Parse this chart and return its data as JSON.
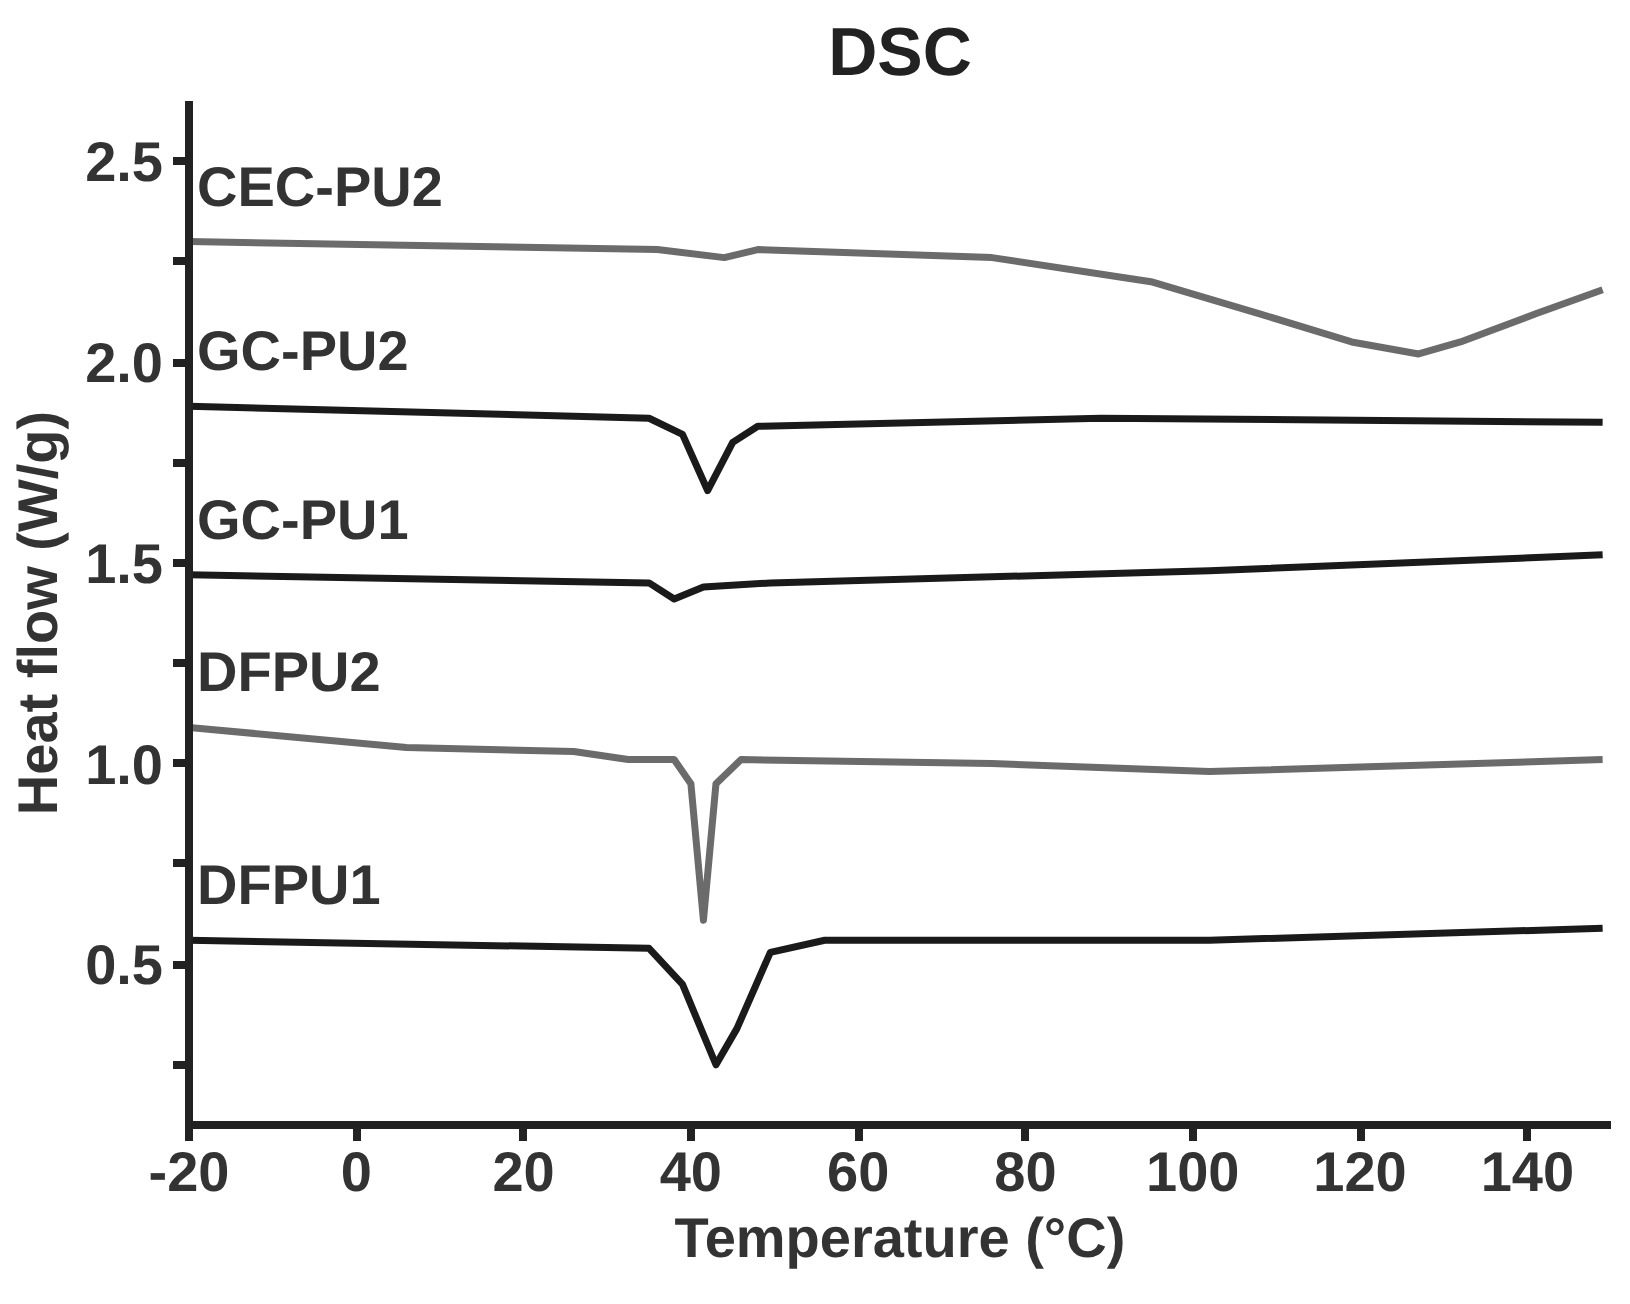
{
  "chart_data": {
    "type": "line",
    "title": "DSC",
    "xlabel": "Temperature (°C)",
    "ylabel": "Heat flow (W/g)",
    "xlim": [
      -20,
      150
    ],
    "xticks": [
      -20,
      0,
      20,
      40,
      60,
      80,
      100,
      120,
      140
    ],
    "ylim": [
      0.1,
      2.65
    ],
    "yticks": [
      {
        "value": 0.25,
        "label": null
      },
      0.5,
      {
        "value": 0.75,
        "label": null
      },
      {
        "value": 1.0,
        "label": "1.0"
      },
      {
        "value": 1.25,
        "label": null
      },
      1.5,
      {
        "value": 1.75,
        "label": null
      },
      {
        "value": 2.0,
        "label": "2.0"
      },
      {
        "value": 2.25,
        "label": null
      },
      2.5
    ],
    "grid": false,
    "legend": false,
    "marker": "none",
    "line_style": "solid",
    "series": [
      {
        "name": "CEC-PU2",
        "color": "#6b6b6b",
        "x": [
          -20,
          36,
          44,
          48,
          76,
          95,
          108,
          119,
          127,
          132,
          141,
          149
        ],
        "values": [
          2.3,
          2.28,
          2.26,
          2.28,
          2.26,
          2.2,
          2.12,
          2.05,
          2.02,
          2.05,
          2.12,
          2.18
        ]
      },
      {
        "name": "GC-PU2",
        "color": "#1a1a1a",
        "x": [
          -20,
          35,
          39,
          42,
          45,
          48,
          89,
          149
        ],
        "values": [
          1.89,
          1.86,
          1.82,
          1.68,
          1.8,
          1.84,
          1.86,
          1.85
        ]
      },
      {
        "name": "GC-PU1",
        "color": "#1a1a1a",
        "x": [
          -20,
          35,
          38,
          41.5,
          49.5,
          102,
          149
        ],
        "values": [
          1.47,
          1.45,
          1.41,
          1.44,
          1.45,
          1.48,
          1.52
        ]
      },
      {
        "name": "DFPU2",
        "color": "#6b6b6b",
        "x": [
          -20,
          6,
          26,
          32.5,
          38,
          40,
          41.5,
          43,
          46,
          76,
          102,
          149
        ],
        "values": [
          1.09,
          1.04,
          1.03,
          1.01,
          1.01,
          0.95,
          0.61,
          0.95,
          1.01,
          1.0,
          0.98,
          1.01
        ]
      },
      {
        "name": "DFPU1",
        "color": "#1a1a1a",
        "x": [
          -20,
          35,
          39,
          43,
          45.5,
          49.5,
          56,
          102,
          149
        ],
        "values": [
          0.56,
          0.54,
          0.45,
          0.25,
          0.34,
          0.53,
          0.56,
          0.56,
          0.59
        ]
      }
    ]
  }
}
